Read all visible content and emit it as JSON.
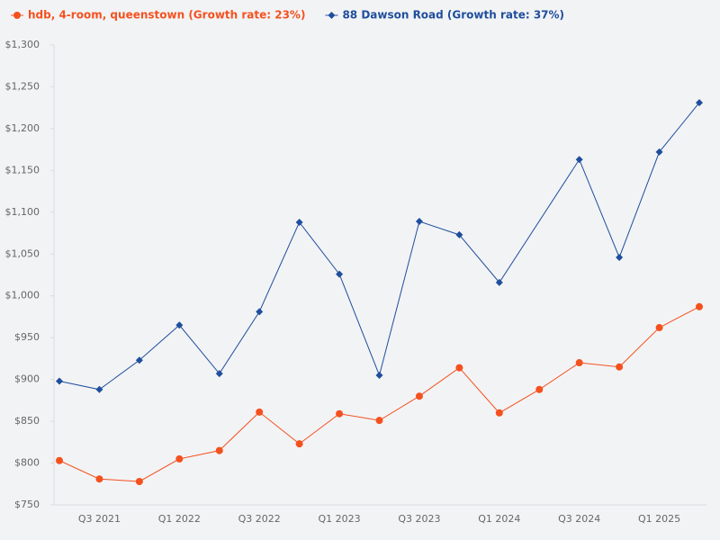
{
  "chart_data": {
    "type": "line",
    "categories": [
      null,
      "Q3 2021",
      null,
      "Q1 2022",
      null,
      "Q3 2022",
      null,
      "Q1 2023",
      null,
      "Q3 2023",
      null,
      "Q1 2024",
      null,
      "Q3 2024",
      null,
      "Q1 2025",
      null
    ],
    "series": [
      {
        "name": "hdb, 4-room, queenstown (Growth rate: 23%)",
        "color": "#f4511e",
        "marker": "circle",
        "values": [
          803,
          781,
          778,
          805,
          815,
          861,
          823,
          859,
          851,
          880,
          914,
          860,
          888,
          920,
          915,
          962,
          987
        ]
      },
      {
        "name": "88 Dawson Road (Growth rate: 37%)",
        "color": "#1f4e9c",
        "marker": "diamond",
        "values": [
          898,
          888,
          923,
          965,
          907,
          981,
          1088,
          1026,
          905,
          1089,
          1073,
          1016,
          null,
          1163,
          1046,
          1172,
          1231
        ]
      }
    ],
    "connect_gaps": true,
    "ylim": [
      750,
      1300
    ],
    "yticks": [
      {
        "value": 750,
        "label": "$750"
      },
      {
        "value": 800,
        "label": "$800"
      },
      {
        "value": 850,
        "label": "$850"
      },
      {
        "value": 900,
        "label": "$900"
      },
      {
        "value": 950,
        "label": "$950"
      },
      {
        "value": 1000,
        "label": "$1,000"
      },
      {
        "value": 1050,
        "label": "$1,050"
      },
      {
        "value": 1100,
        "label": "$1,100"
      },
      {
        "value": 1150,
        "label": "$1,150"
      },
      {
        "value": 1200,
        "label": "$1,200"
      },
      {
        "value": 1250,
        "label": "$1,250"
      },
      {
        "value": 1300,
        "label": "$1,300"
      }
    ],
    "legend": "top-left"
  }
}
